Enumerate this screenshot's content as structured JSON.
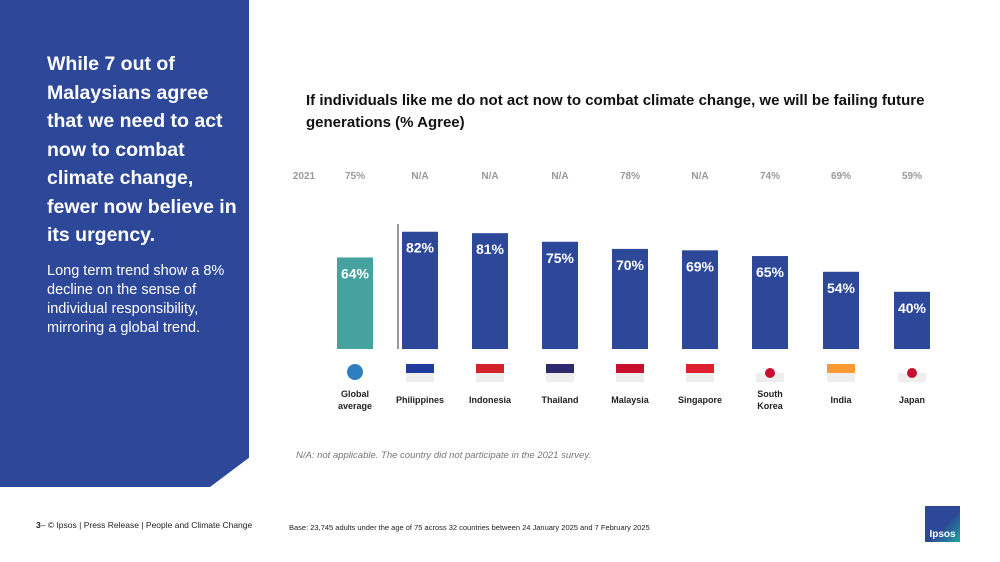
{
  "left_panel": {
    "headline": "While 7 out of Malaysians agree that we need to act now to combat climate change, fewer now believe in its urgency.",
    "body": "Long term trend show a 8% decline on the sense of individual responsibility, mirroring a global trend."
  },
  "footer": {
    "page": "3",
    "source": "– © Ipsos | Press Release | People and Climate Change",
    "base": "Base: 23,745 adults under the age of 75 across 32 countries between 24 January 2025 and 7 February 2025",
    "logo": "Ipsos"
  },
  "note": "N/A: not applicable. The country did not participate in the 2021 survey.",
  "chart_data": {
    "type": "bar",
    "title": "If individuals like me do not act now to combat climate change, we will be failing future generations (% Agree)",
    "categories": [
      "Global average",
      "Philippines",
      "Indonesia",
      "Thailand",
      "Malaysia",
      "Singapore",
      "South Korea",
      "India",
      "Japan"
    ],
    "values": [
      64,
      82,
      81,
      75,
      70,
      69,
      65,
      54,
      40
    ],
    "value_labels": [
      "64%",
      "82%",
      "81%",
      "75%",
      "70%",
      "69%",
      "65%",
      "54%",
      "40%"
    ],
    "prev_label": "2021",
    "prev_values": [
      "75%",
      "N/A",
      "N/A",
      "N/A",
      "78%",
      "N/A",
      "74%",
      "69%",
      "59%"
    ],
    "flags": [
      "globe-icon",
      "flag-philippines-icon",
      "flag-indonesia-icon",
      "flag-thailand-icon",
      "flag-malaysia-icon",
      "flag-singapore-icon",
      "flag-south-korea-icon",
      "flag-india-icon",
      "flag-japan-icon"
    ],
    "colors": {
      "global": "#45a29e",
      "country": "#2d4899"
    },
    "ylim": [
      0,
      100
    ]
  }
}
